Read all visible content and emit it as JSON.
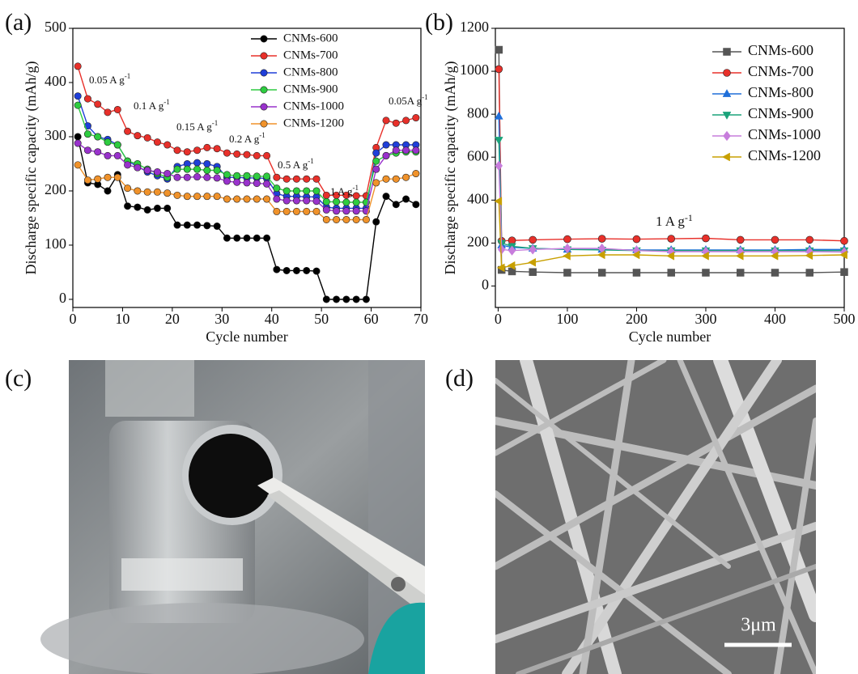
{
  "chart_data": [
    {
      "type": "line",
      "panel_label": "(a)",
      "xlabel": "Cycle number",
      "ylabel": "Discharge specific capacity (mAh/g)",
      "xlim": [
        0,
        70
      ],
      "ylim": [
        -15,
        500
      ],
      "xticks": [
        0,
        10,
        20,
        30,
        40,
        50,
        60,
        70
      ],
      "yticks": [
        0,
        100,
        200,
        300,
        400,
        500
      ],
      "x": [
        1,
        3,
        5,
        7,
        9,
        11,
        13,
        15,
        17,
        19,
        21,
        23,
        25,
        27,
        29,
        31,
        33,
        35,
        37,
        39,
        41,
        43,
        45,
        47,
        49,
        51,
        53,
        55,
        57,
        59,
        61,
        63,
        65,
        67,
        69
      ],
      "series": [
        {
          "name": "CNMs-600",
          "color": "#000000",
          "marker": "circle",
          "values": [
            300,
            215,
            212,
            200,
            230,
            172,
            170,
            165,
            168,
            168,
            137,
            137,
            137,
            136,
            135,
            113,
            113,
            113,
            113,
            113,
            55,
            53,
            53,
            53,
            52,
            0,
            0,
            0,
            0,
            0,
            143,
            190,
            175,
            185,
            175
          ]
        },
        {
          "name": "CNMs-700",
          "color": "#e8302a",
          "marker": "circle",
          "values": [
            430,
            370,
            360,
            345,
            350,
            310,
            302,
            298,
            290,
            285,
            275,
            272,
            275,
            280,
            278,
            270,
            268,
            267,
            265,
            265,
            225,
            222,
            222,
            222,
            222,
            192,
            192,
            192,
            191,
            191,
            280,
            330,
            325,
            330,
            335
          ]
        },
        {
          "name": "CNMs-800",
          "color": "#1f3fd9",
          "marker": "circle",
          "values": [
            375,
            320,
            300,
            295,
            285,
            255,
            245,
            235,
            228,
            222,
            245,
            250,
            252,
            250,
            245,
            225,
            225,
            224,
            224,
            223,
            195,
            190,
            190,
            189,
            189,
            170,
            168,
            168,
            168,
            168,
            270,
            285,
            285,
            285,
            285
          ]
        },
        {
          "name": "CNMs-900",
          "color": "#2ecc40",
          "marker": "circle",
          "values": [
            358,
            305,
            300,
            290,
            285,
            255,
            250,
            240,
            232,
            225,
            240,
            240,
            240,
            238,
            238,
            230,
            228,
            228,
            227,
            227,
            205,
            200,
            200,
            200,
            200,
            180,
            180,
            179,
            179,
            179,
            255,
            265,
            270,
            272,
            272
          ]
        },
        {
          "name": "CNMs-1000",
          "color": "#9932cc",
          "marker": "circle",
          "values": [
            288,
            275,
            272,
            265,
            265,
            248,
            243,
            238,
            235,
            232,
            225,
            225,
            226,
            225,
            224,
            218,
            216,
            215,
            214,
            213,
            185,
            182,
            182,
            182,
            181,
            165,
            163,
            163,
            163,
            163,
            240,
            265,
            275,
            275,
            275
          ]
        },
        {
          "name": "CNMs-1200",
          "color": "#f0922a",
          "marker": "circle",
          "values": [
            248,
            220,
            222,
            225,
            225,
            205,
            200,
            198,
            198,
            196,
            192,
            190,
            190,
            190,
            190,
            185,
            185,
            185,
            185,
            185,
            162,
            162,
            162,
            162,
            162,
            147,
            147,
            147,
            147,
            147,
            215,
            222,
            222,
            225,
            232
          ]
        }
      ],
      "annotations": [
        {
          "text": "0.05 A g",
          "sup": "-1"
        },
        {
          "text": "0.1 A g",
          "sup": "-1"
        },
        {
          "text": "0.15 A g",
          "sup": "-1"
        },
        {
          "text": "0.2 A g",
          "sup": "-1"
        },
        {
          "text": "0.5 A g",
          "sup": "-1"
        },
        {
          "text": "1 A g",
          "sup": "-1"
        },
        {
          "text": "0.05A g",
          "sup": "-1"
        }
      ]
    },
    {
      "type": "line",
      "panel_label": "(b)",
      "xlabel": "Cycle number",
      "ylabel": "Discharge specific capacity (mAh/g)",
      "xlim": [
        -4,
        500
      ],
      "ylim": [
        -100,
        1200
      ],
      "xticks": [
        0,
        100,
        200,
        300,
        400,
        500
      ],
      "yticks": [
        0,
        200,
        400,
        600,
        800,
        1000,
        1200
      ],
      "x": [
        1,
        5,
        20,
        50,
        100,
        150,
        200,
        250,
        300,
        350,
        400,
        450,
        500
      ],
      "series": [
        {
          "name": "CNMs-600",
          "color": "#555555",
          "marker": "square",
          "values": [
            1100,
            75,
            68,
            65,
            62,
            62,
            62,
            62,
            62,
            62,
            62,
            62,
            65
          ]
        },
        {
          "name": "CNMs-700",
          "color": "#e8302a",
          "marker": "circle",
          "values": [
            1010,
            210,
            212,
            215,
            218,
            220,
            218,
            220,
            222,
            215,
            215,
            215,
            210
          ]
        },
        {
          "name": "CNMs-800",
          "color": "#1f6fd9",
          "marker": "triangle-up",
          "values": [
            790,
            190,
            180,
            175,
            170,
            170,
            168,
            168,
            168,
            168,
            168,
            170,
            170
          ]
        },
        {
          "name": "CNMs-900",
          "color": "#1aa37a",
          "marker": "triangle-down",
          "values": [
            680,
            200,
            185,
            175,
            170,
            168,
            165,
            165,
            165,
            165,
            165,
            165,
            165
          ]
        },
        {
          "name": "CNMs-1000",
          "color": "#c77ddc",
          "marker": "diamond",
          "values": [
            560,
            170,
            165,
            170,
            175,
            175,
            165,
            160,
            160,
            160,
            160,
            160,
            158
          ]
        },
        {
          "name": "CNMs-1200",
          "color": "#c8a000",
          "marker": "triangle-left",
          "values": [
            395,
            85,
            95,
            110,
            140,
            145,
            145,
            140,
            140,
            140,
            140,
            142,
            145
          ]
        }
      ],
      "annotations": [
        {
          "text": "1 A g",
          "sup": "-1"
        }
      ]
    }
  ],
  "photos": {
    "c_label": "(c)",
    "d_label": "(d)",
    "scale_bar": "3μm"
  }
}
